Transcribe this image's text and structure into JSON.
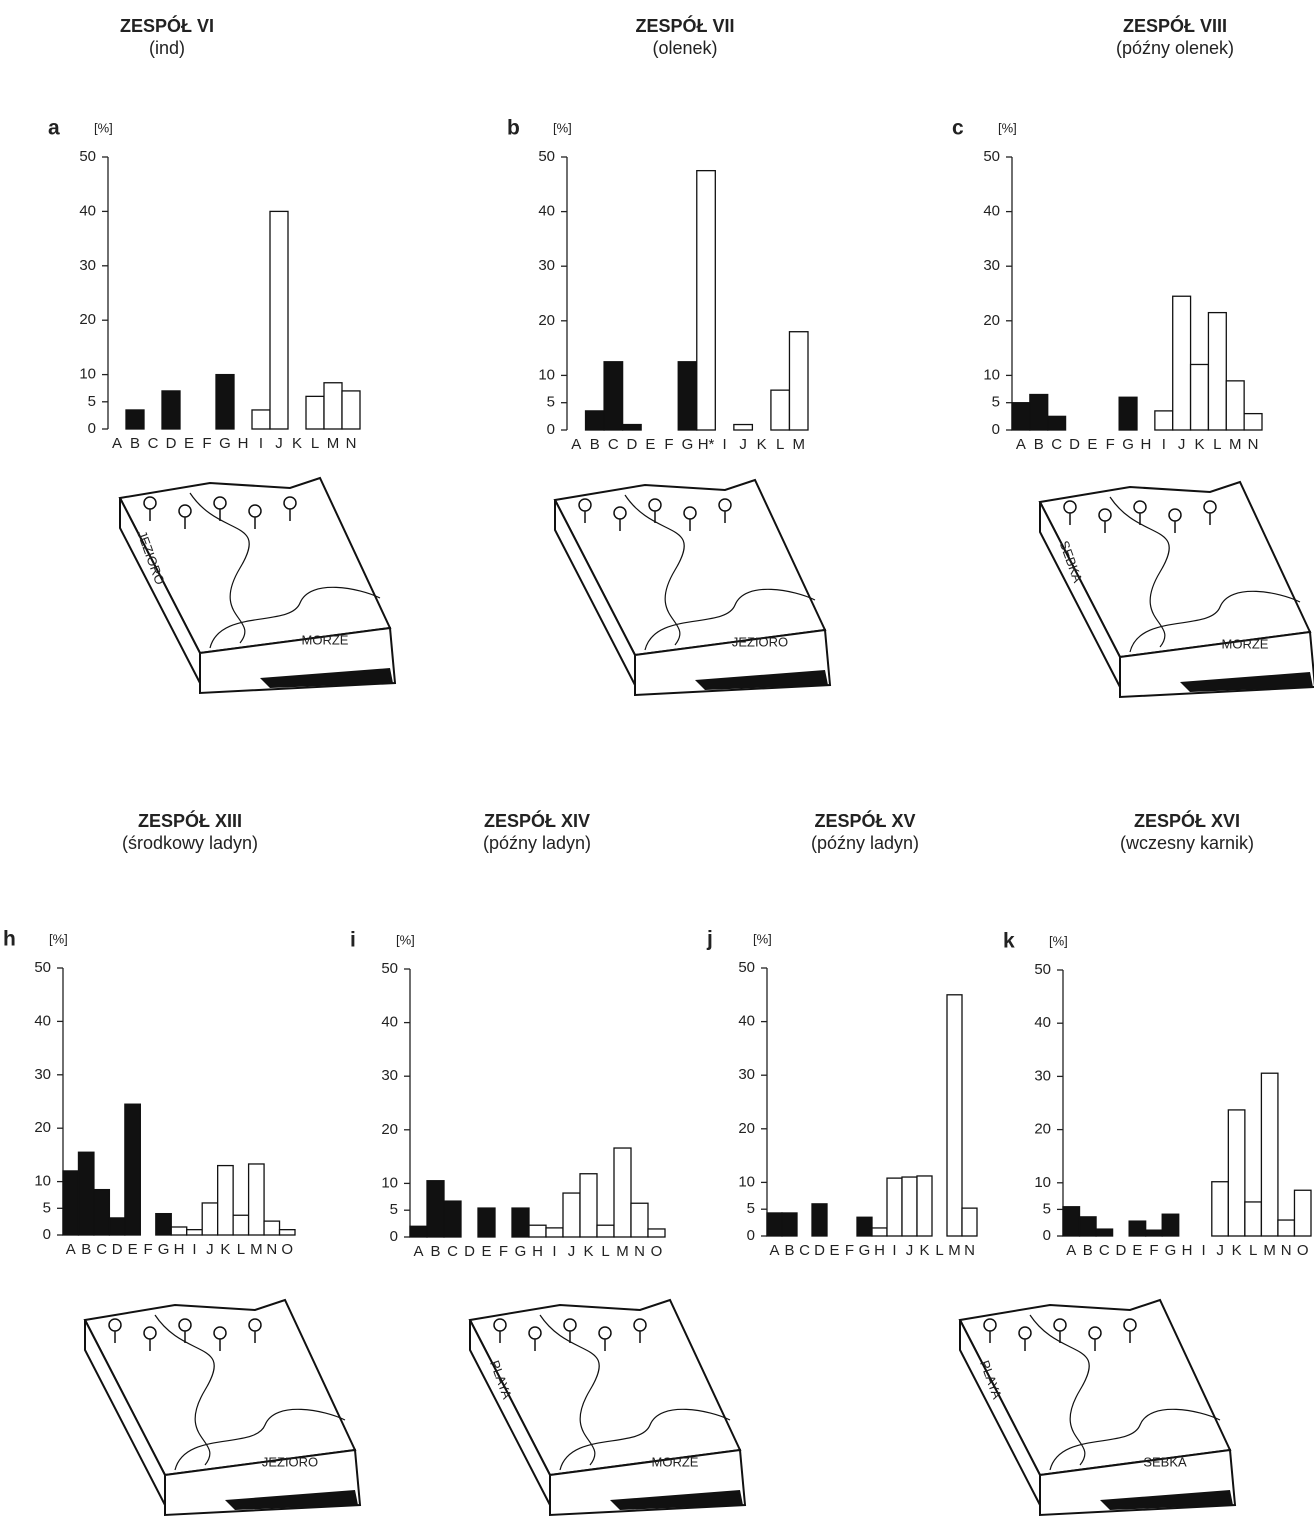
{
  "chart_data": [
    {
      "type": "bar",
      "panel": "a",
      "title": "ZESPÓŁ VI",
      "subtitle": "(ind)",
      "unit": "[%]",
      "categories": [
        "A",
        "B",
        "C",
        "D",
        "E",
        "F",
        "G",
        "H",
        "I",
        "J",
        "K",
        "L",
        "M",
        "N"
      ],
      "values": [
        null,
        3.5,
        null,
        7,
        null,
        null,
        10,
        null,
        3.5,
        40,
        null,
        6,
        8.5,
        7
      ],
      "colors": [
        "#111",
        "#111",
        "#111",
        "#111",
        "#111",
        "#111",
        "#111",
        "#111",
        "#fff",
        "#fff",
        "#fff",
        "#fff",
        "#fff",
        "#fff"
      ],
      "ylim": [
        0,
        50
      ],
      "yticks": [
        0,
        5,
        10,
        20,
        30,
        40,
        50
      ],
      "diagram_labels": {
        "side": "JEZIORO",
        "front": "MORZE"
      }
    },
    {
      "type": "bar",
      "panel": "b",
      "title": "ZESPÓŁ VII",
      "subtitle": "(olenek)",
      "unit": "[%]",
      "categories": [
        "A",
        "B",
        "C",
        "D",
        "E",
        "F",
        "G",
        "H*",
        "I",
        "J",
        "K",
        "L",
        "M"
      ],
      "values": [
        null,
        3.5,
        12.5,
        1,
        null,
        null,
        12.5,
        47.5,
        null,
        1,
        null,
        7.3,
        18
      ],
      "colors": [
        "#111",
        "#111",
        "#111",
        "#111",
        "#111",
        "#111",
        "#111",
        "#fff",
        "#fff",
        "#fff",
        "#fff",
        "#fff",
        "#fff"
      ],
      "ylim": [
        0,
        50
      ],
      "yticks": [
        0,
        5,
        10,
        20,
        30,
        40,
        50
      ],
      "diagram_labels": {
        "front": "JEZIORO"
      }
    },
    {
      "type": "bar",
      "panel": "c",
      "title": "ZESPÓŁ VIII",
      "subtitle": "(późny olenek)",
      "unit": "[%]",
      "categories": [
        "A",
        "B",
        "C",
        "D",
        "E",
        "F",
        "G",
        "H",
        "I",
        "J",
        "K",
        "L",
        "M",
        "N"
      ],
      "values": [
        5,
        6.5,
        2.5,
        null,
        null,
        null,
        6,
        null,
        3.5,
        24.5,
        12,
        21.5,
        9,
        3
      ],
      "colors": [
        "#111",
        "#111",
        "#111",
        "#111",
        "#111",
        "#111",
        "#111",
        "#111",
        "#fff",
        "#fff",
        "#fff",
        "#fff",
        "#fff",
        "#fff"
      ],
      "ylim": [
        0,
        50
      ],
      "yticks": [
        0,
        5,
        10,
        20,
        30,
        40,
        50
      ],
      "diagram_labels": {
        "side": "SEBKA",
        "front": "MORZE"
      }
    },
    {
      "type": "bar",
      "panel": "h",
      "title": "ZESPÓŁ  XIII",
      "subtitle": "(środkowy ladyn)",
      "unit": "[%]",
      "categories": [
        "A",
        "B",
        "C",
        "D",
        "E",
        "F",
        "G",
        "H",
        "I",
        "J",
        "K",
        "L",
        "M",
        "N",
        "O"
      ],
      "values": [
        12,
        15.5,
        8.5,
        3.2,
        24.5,
        null,
        4,
        1.5,
        1,
        6,
        13,
        3.7,
        13.3,
        2.6,
        1
      ],
      "colors": [
        "#111",
        "#111",
        "#111",
        "#111",
        "#111",
        "#111",
        "#111",
        "#fff",
        "#fff",
        "#fff",
        "#fff",
        "#fff",
        "#fff",
        "#fff",
        "#fff"
      ],
      "ylim": [
        0,
        50
      ],
      "yticks": [
        0,
        5,
        10,
        20,
        30,
        40,
        50
      ],
      "diagram_labels": {
        "front": "JEZIORO"
      }
    },
    {
      "type": "bar",
      "panel": "i",
      "title": "ZESPÓŁ XIV",
      "subtitle": "(późny ladyn)",
      "unit": "[%]",
      "categories": [
        "A",
        "B",
        "C",
        "D",
        "E",
        "F",
        "G",
        "H",
        "I",
        "J",
        "K",
        "L",
        "M",
        "N",
        "O"
      ],
      "values": [
        2,
        10.5,
        6.7,
        null,
        5.4,
        null,
        5.4,
        2.2,
        1.7,
        8.2,
        11.8,
        2.2,
        16.6,
        6.3,
        1.5
      ],
      "colors": [
        "#111",
        "#111",
        "#111",
        "#111",
        "#111",
        "#111",
        "#111",
        "#fff",
        "#fff",
        "#fff",
        "#fff",
        "#fff",
        "#fff",
        "#fff",
        "#fff"
      ],
      "ylim": [
        0,
        50
      ],
      "yticks": [
        0,
        5,
        10,
        20,
        30,
        40,
        50
      ],
      "diagram_labels": {
        "side": "PLAYA",
        "front": "MORZE"
      }
    },
    {
      "type": "bar",
      "panel": "j",
      "title": "ZESPÓŁ XV",
      "subtitle": "(późny ladyn)",
      "unit": "[%]",
      "categories": [
        "A",
        "B",
        "C",
        "D",
        "E",
        "F",
        "G",
        "H",
        "I",
        "J",
        "K",
        "L",
        "M",
        "N"
      ],
      "values": [
        4.3,
        4.3,
        null,
        6,
        null,
        null,
        3.5,
        1.5,
        10.8,
        11,
        11.2,
        null,
        45,
        5.2
      ],
      "colors": [
        "#111",
        "#111",
        "#111",
        "#111",
        "#111",
        "#111",
        "#111",
        "#fff",
        "#fff",
        "#fff",
        "#fff",
        "#fff",
        "#fff",
        "#fff"
      ],
      "ylim": [
        0,
        50
      ],
      "yticks": [
        0,
        5,
        10,
        20,
        30,
        40,
        50
      ]
    },
    {
      "type": "bar",
      "panel": "k",
      "title": "ZESPÓŁ XVI",
      "subtitle": "(wczesny karnik)",
      "unit": "[%]",
      "categories": [
        "A",
        "B",
        "C",
        "D",
        "E",
        "F",
        "G",
        "H",
        "I",
        "J",
        "K",
        "L",
        "M",
        "N",
        "O"
      ],
      "values": [
        5.5,
        3.6,
        1.3,
        null,
        2.8,
        1.1,
        4.1,
        null,
        null,
        10.2,
        23.7,
        6.4,
        30.6,
        3,
        8.6
      ],
      "colors": [
        "#111",
        "#111",
        "#111",
        "#111",
        "#111",
        "#111",
        "#111",
        "#111",
        "#fff",
        "#fff",
        "#fff",
        "#fff",
        "#fff",
        "#fff",
        "#fff"
      ],
      "ylim": [
        0,
        50
      ],
      "yticks": [
        0,
        5,
        10,
        20,
        30,
        40,
        50
      ],
      "diagram_labels": {
        "side": "PLAYA",
        "front": "SEBKA"
      }
    }
  ]
}
